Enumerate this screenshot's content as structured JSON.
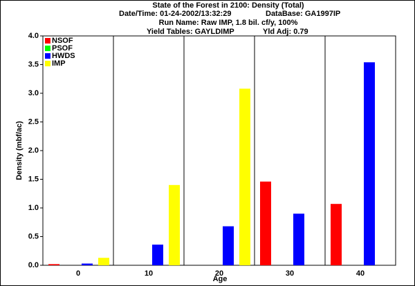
{
  "chart_data": {
    "type": "bar",
    "title": "State of the Forest in 2100: Density (Total)",
    "subtitles": [
      "Date/Time: 01-24-2002/13:32:29",
      "DataBase: GA1997IP",
      "Run Name: Raw IMP, 1.8 bil. cf/y, 100%",
      "Yield Tables: GAYLDIMP",
      "Yld Adj: 0.79"
    ],
    "x_label": "Age",
    "y_label": "Density (mbf/ac)",
    "categories": [
      "0",
      "10",
      "20",
      "30",
      "40"
    ],
    "series": [
      {
        "name": "NSOF",
        "color": "#ff0000",
        "values": [
          0.02,
          0,
          0,
          1.46,
          1.07
        ]
      },
      {
        "name": "PSOF",
        "color": "#00ff00",
        "values": [
          0,
          0,
          0,
          0,
          0
        ]
      },
      {
        "name": "HWDS",
        "color": "#0000ff",
        "values": [
          0.03,
          0.36,
          0.68,
          0.9,
          3.54
        ]
      },
      {
        "name": "IMP",
        "color": "#ffff00",
        "values": [
          0.13,
          1.4,
          3.08,
          0,
          0
        ]
      }
    ],
    "ylim": [
      0,
      4
    ],
    "yticks": [
      {
        "value": 0,
        "label": "0.0"
      },
      0.5,
      {
        "value": 1,
        "label": "1.0"
      },
      1.5,
      {
        "value": 2,
        "label": "2.0"
      },
      2.5,
      {
        "value": 3,
        "label": "3.0"
      },
      3.5,
      {
        "value": 4,
        "label": "4.0"
      }
    ],
    "legend": "upper-left"
  }
}
